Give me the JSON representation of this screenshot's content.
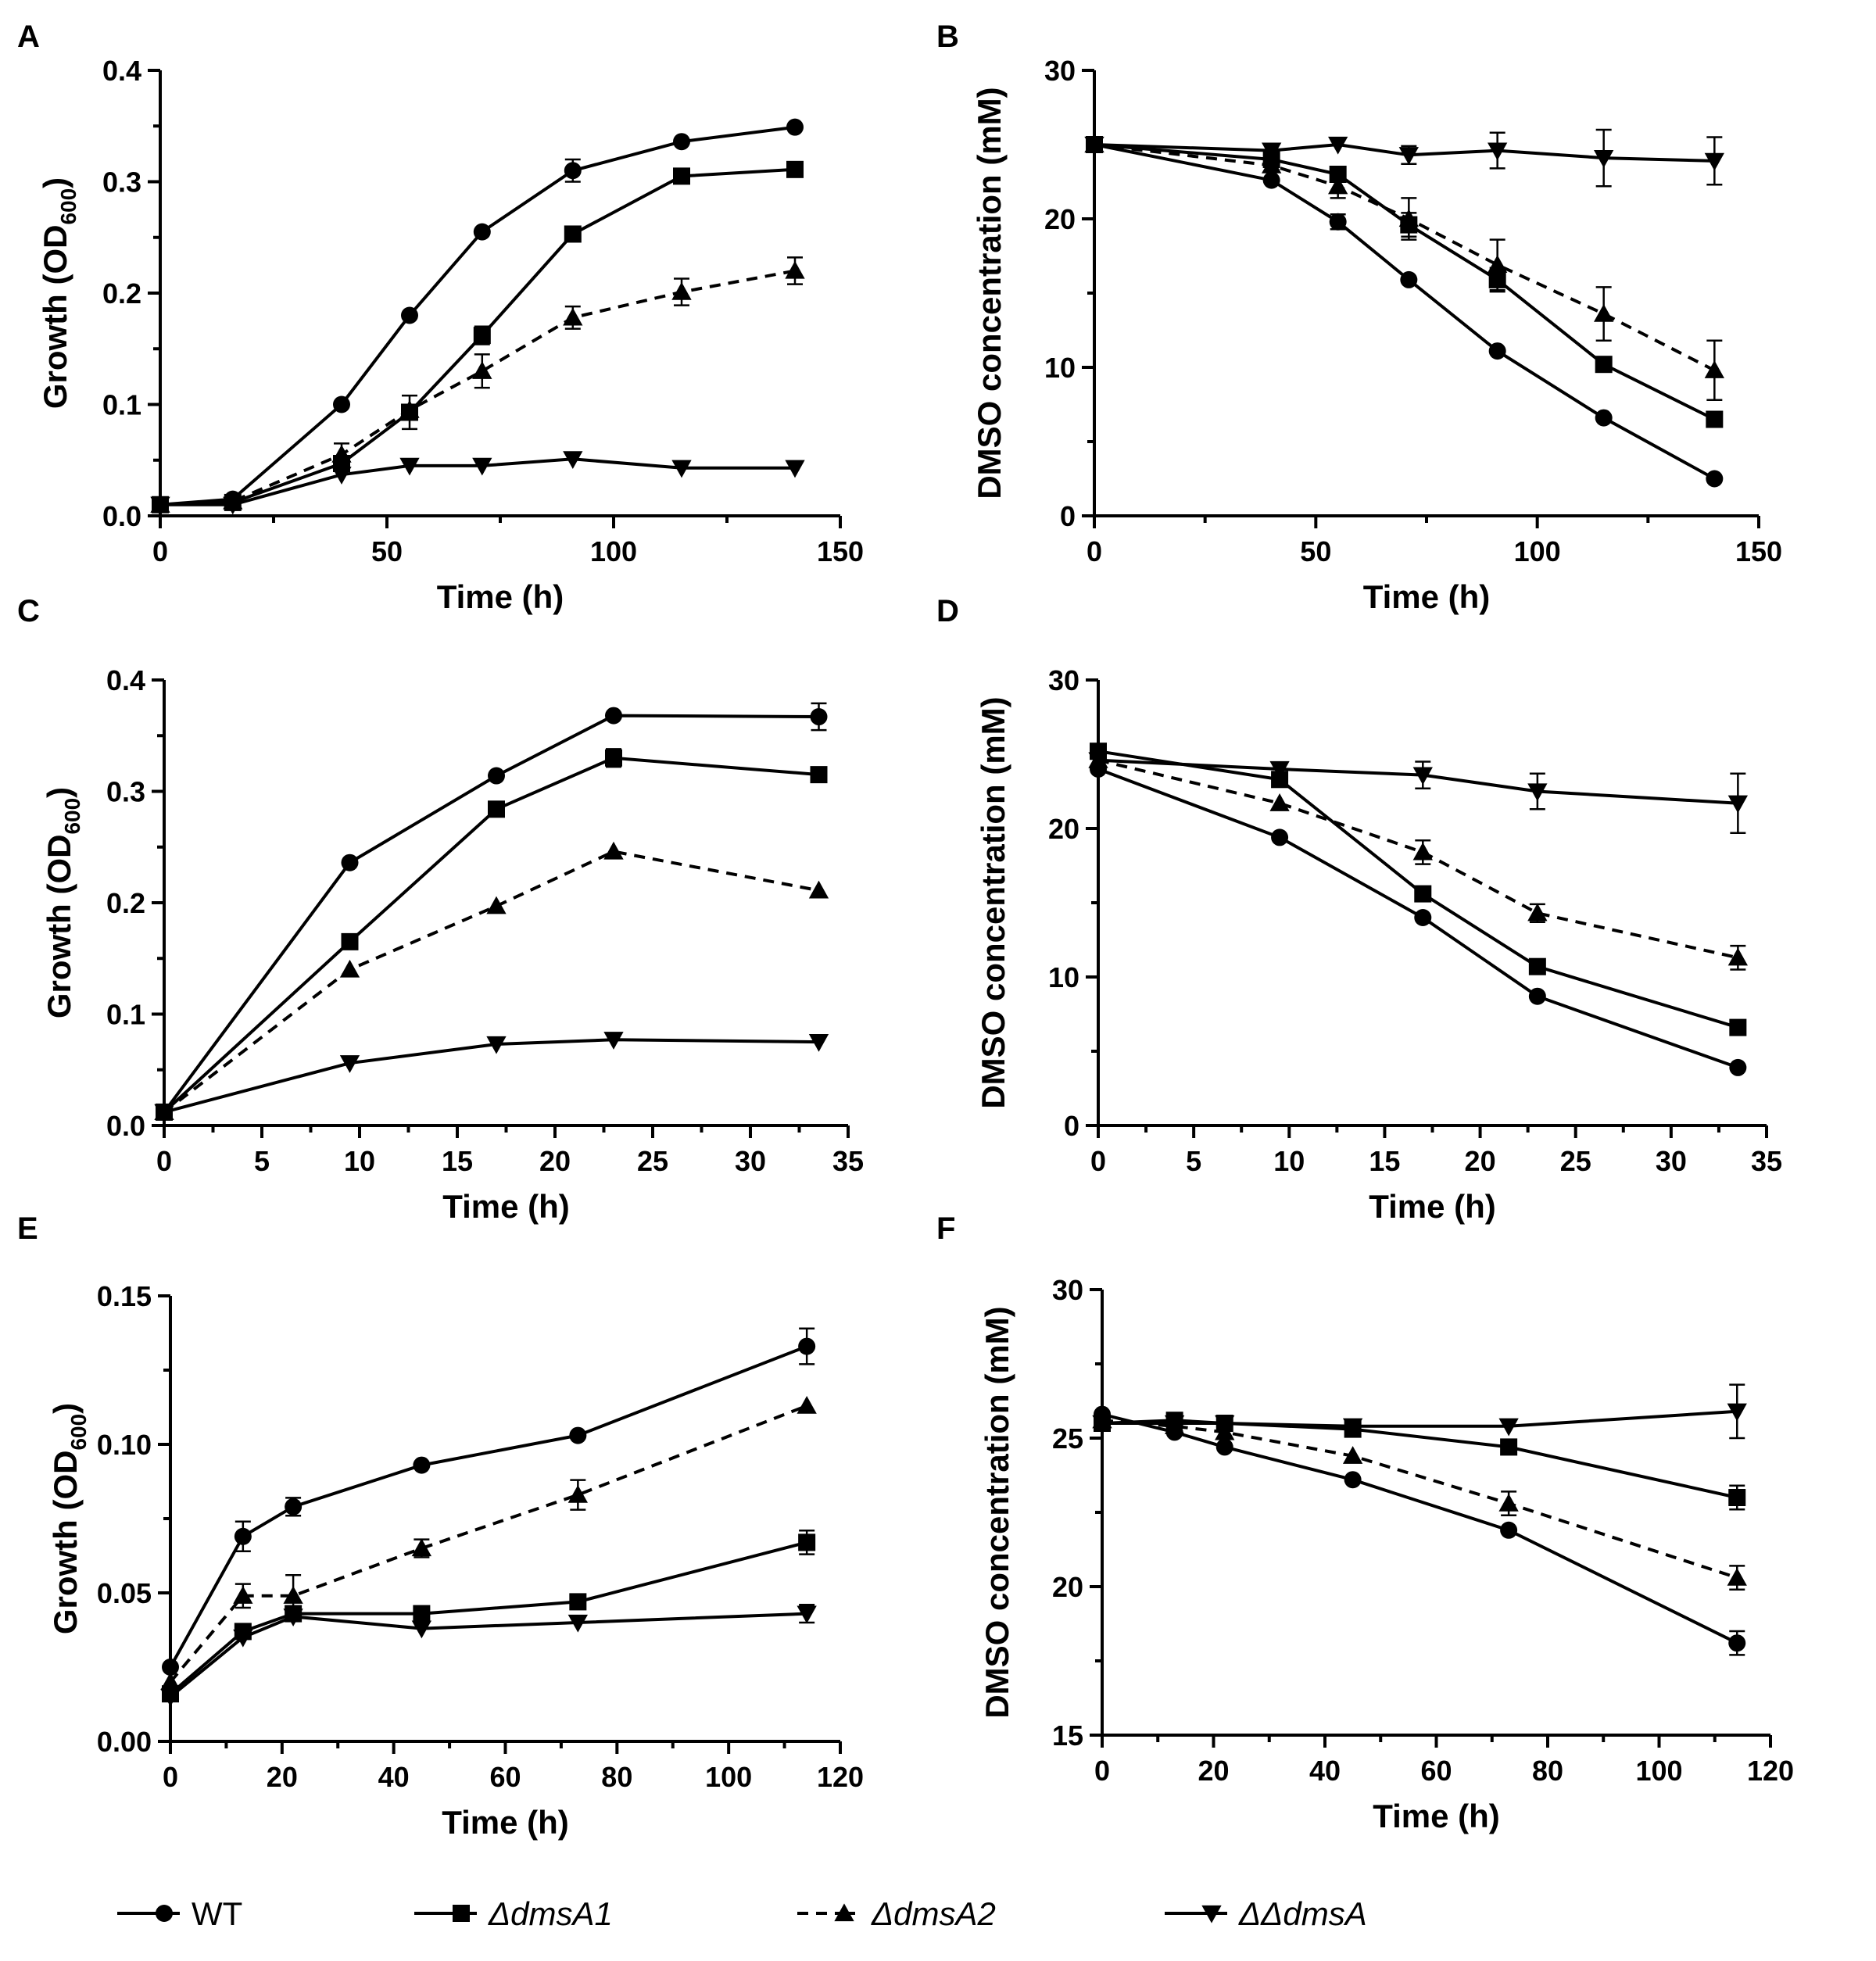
{
  "legend": [
    {
      "key": "wt",
      "label": "WT",
      "marker": "circle",
      "dashed": false,
      "italic": false
    },
    {
      "key": "a1",
      "label": "ΔdmsA1",
      "marker": "square",
      "dashed": false,
      "italic": true
    },
    {
      "key": "a2",
      "label": "ΔdmsA2",
      "marker": "triangle-up",
      "dashed": true,
      "italic": true
    },
    {
      "key": "dd",
      "label": "ΔΔdmsA",
      "marker": "triangle-down",
      "dashed": false,
      "italic": true
    }
  ],
  "chart_data": [
    {
      "panel": "A",
      "type": "line",
      "xlabel": "Time (h)",
      "ylabel_main": "Growth (OD",
      "ylabel_sub": "600",
      "ylabel_end": ")",
      "xlim": [
        0,
        150
      ],
      "ylim": [
        0,
        0.4
      ],
      "xticks": [
        0,
        50,
        100,
        150
      ],
      "xtick_labels": [
        "0",
        "50",
        "100",
        "150"
      ],
      "yticks": [
        0,
        0.1,
        0.2,
        0.3,
        0.4
      ],
      "ytick_labels": [
        "0.0",
        "0.1",
        "0.2",
        "0.3",
        "0.4"
      ],
      "series": [
        {
          "key": "wt",
          "x": [
            0,
            16,
            40,
            55,
            71,
            91,
            115,
            140
          ],
          "y": [
            0.01,
            0.015,
            0.1,
            0.18,
            0.255,
            0.31,
            0.336,
            0.349
          ],
          "err": [
            0,
            0,
            0,
            0,
            0,
            0.01,
            0,
            0
          ]
        },
        {
          "key": "a1",
          "x": [
            0,
            16,
            40,
            55,
            71,
            91,
            115,
            140
          ],
          "y": [
            0.01,
            0.012,
            0.047,
            0.093,
            0.162,
            0.253,
            0.305,
            0.311
          ],
          "err": [
            0,
            0,
            0,
            0.015,
            0.008,
            0,
            0,
            0
          ]
        },
        {
          "key": "a2",
          "x": [
            0,
            16,
            40,
            55,
            71,
            91,
            115,
            140
          ],
          "y": [
            0.01,
            0.013,
            0.055,
            0.095,
            0.13,
            0.178,
            0.201,
            0.22
          ],
          "err": [
            0,
            0,
            0.01,
            0,
            0.015,
            0.01,
            0.012,
            0.012
          ]
        },
        {
          "key": "dd",
          "x": [
            0,
            16,
            40,
            55,
            71,
            91,
            115,
            140
          ],
          "y": [
            0.01,
            0.01,
            0.037,
            0.045,
            0.045,
            0.051,
            0.043,
            0.043
          ],
          "err": [
            0,
            0,
            0,
            0,
            0,
            0,
            0,
            0
          ]
        }
      ]
    },
    {
      "panel": "B",
      "type": "line",
      "xlabel": "Time (h)",
      "ylabel_main": "DMSO concentration (mM)",
      "ylabel_sub": "",
      "ylabel_end": "",
      "xlim": [
        0,
        150
      ],
      "ylim": [
        0,
        30
      ],
      "xticks": [
        0,
        50,
        100,
        150
      ],
      "xtick_labels": [
        "0",
        "50",
        "100",
        "150"
      ],
      "yticks": [
        0,
        10,
        20,
        30
      ],
      "ytick_labels": [
        "0",
        "10",
        "20",
        "30"
      ],
      "series": [
        {
          "key": "wt",
          "x": [
            0,
            40,
            55,
            71,
            91,
            115,
            140
          ],
          "y": [
            25,
            22.6,
            19.8,
            15.9,
            11.1,
            6.6,
            2.5
          ],
          "err": [
            0,
            0,
            0.5,
            0,
            0,
            0,
            0
          ]
        },
        {
          "key": "a1",
          "x": [
            0,
            40,
            55,
            71,
            91,
            115,
            140
          ],
          "y": [
            25,
            24,
            23,
            19.6,
            15.9,
            10.2,
            6.5
          ],
          "err": [
            0,
            0,
            0,
            0.8,
            0.8,
            0,
            0
          ]
        },
        {
          "key": "a2",
          "x": [
            0,
            40,
            55,
            71,
            91,
            115,
            140
          ],
          "y": [
            25,
            23.6,
            22.2,
            20,
            16.9,
            13.6,
            9.8
          ],
          "err": [
            0,
            0,
            0.8,
            1.4,
            1.7,
            1.8,
            2
          ]
        },
        {
          "key": "dd",
          "x": [
            0,
            40,
            55,
            71,
            91,
            115,
            140
          ],
          "y": [
            25,
            24.6,
            25,
            24.3,
            24.6,
            24.1,
            23.9
          ],
          "err": [
            0,
            0,
            0,
            0.6,
            1.2,
            1.9,
            1.6
          ]
        }
      ]
    },
    {
      "panel": "C",
      "type": "line",
      "xlabel": "Time (h)",
      "ylabel_main": "Growth (OD",
      "ylabel_sub": "600",
      "ylabel_end": ")",
      "xlim": [
        0,
        35
      ],
      "ylim": [
        0,
        0.4
      ],
      "xticks": [
        0,
        5,
        10,
        15,
        20,
        25,
        30,
        35
      ],
      "xtick_labels": [
        "0",
        "5",
        "10",
        "15",
        "20",
        "25",
        "30",
        "35"
      ],
      "yticks": [
        0,
        0.1,
        0.2,
        0.3,
        0.4
      ],
      "ytick_labels": [
        "0.0",
        "0.1",
        "0.2",
        "0.3",
        "0.4"
      ],
      "series": [
        {
          "key": "wt",
          "x": [
            0,
            9.5,
            17,
            23,
            33.5
          ],
          "y": [
            0.012,
            0.236,
            0.314,
            0.368,
            0.367
          ],
          "err": [
            0,
            0,
            0,
            0,
            0.012
          ]
        },
        {
          "key": "a1",
          "x": [
            0,
            9.5,
            17,
            23,
            33.5
          ],
          "y": [
            0.012,
            0.165,
            0.284,
            0.33,
            0.315
          ],
          "err": [
            0,
            0,
            0,
            0.008,
            0
          ]
        },
        {
          "key": "a2",
          "x": [
            0,
            9.5,
            17,
            23,
            33.5
          ],
          "y": [
            0.012,
            0.14,
            0.197,
            0.246,
            0.211
          ],
          "err": [
            0,
            0,
            0,
            0,
            0
          ]
        },
        {
          "key": "dd",
          "x": [
            0,
            9.5,
            17,
            23,
            33.5
          ],
          "y": [
            0.012,
            0.056,
            0.073,
            0.077,
            0.075
          ],
          "err": [
            0,
            0,
            0,
            0,
            0
          ]
        }
      ]
    },
    {
      "panel": "D",
      "type": "line",
      "xlabel": "Time (h)",
      "ylabel_main": "DMSO concentration (mM)",
      "ylabel_sub": "",
      "ylabel_end": "",
      "xlim": [
        0,
        35
      ],
      "ylim": [
        0,
        30
      ],
      "xticks": [
        0,
        5,
        10,
        15,
        20,
        25,
        30,
        35
      ],
      "xtick_labels": [
        "0",
        "5",
        "10",
        "15",
        "20",
        "25",
        "30",
        "35"
      ],
      "yticks": [
        0,
        10,
        20,
        30
      ],
      "ytick_labels": [
        "0",
        "10",
        "20",
        "30"
      ],
      "series": [
        {
          "key": "wt",
          "x": [
            0,
            9.5,
            17,
            23,
            33.5
          ],
          "y": [
            24,
            19.4,
            14,
            8.7,
            3.9
          ],
          "err": [
            0,
            0,
            0,
            0,
            0
          ]
        },
        {
          "key": "a1",
          "x": [
            0,
            9.5,
            17,
            23,
            33.5
          ],
          "y": [
            25.2,
            23.3,
            15.6,
            10.7,
            6.6
          ],
          "err": [
            0,
            0,
            0,
            0,
            0
          ]
        },
        {
          "key": "a2",
          "x": [
            0,
            9.5,
            17,
            23,
            33.5
          ],
          "y": [
            24.6,
            21.7,
            18.4,
            14.3,
            11.3
          ],
          "err": [
            0,
            0,
            0.8,
            0.6,
            0.8
          ]
        },
        {
          "key": "dd",
          "x": [
            0,
            9.5,
            17,
            23,
            33.5
          ],
          "y": [
            24.6,
            24,
            23.6,
            22.5,
            21.7
          ],
          "err": [
            0,
            0,
            0.9,
            1.2,
            2
          ]
        }
      ]
    },
    {
      "panel": "E",
      "type": "line",
      "xlabel": "Time (h)",
      "ylabel_main": "Growth (OD",
      "ylabel_sub": "600",
      "ylabel_end": ")",
      "xlim": [
        0,
        120
      ],
      "ylim": [
        0,
        0.15
      ],
      "xticks": [
        0,
        20,
        40,
        60,
        80,
        100,
        120
      ],
      "xtick_labels": [
        "0",
        "20",
        "40",
        "60",
        "80",
        "100",
        "120"
      ],
      "yticks": [
        0,
        0.05,
        0.1,
        0.15
      ],
      "ytick_labels": [
        "0.00",
        "0.05",
        "0.10",
        "0.15"
      ],
      "series": [
        {
          "key": "wt",
          "x": [
            0,
            13,
            22,
            45,
            73,
            114
          ],
          "y": [
            0.025,
            0.069,
            0.079,
            0.093,
            0.103,
            0.133
          ],
          "err": [
            0,
            0.005,
            0.003,
            0,
            0,
            0.006
          ]
        },
        {
          "key": "a1",
          "x": [
            0,
            13,
            22,
            45,
            73,
            114
          ],
          "y": [
            0.016,
            0.037,
            0.043,
            0.043,
            0.047,
            0.067
          ],
          "err": [
            0,
            0,
            0,
            0,
            0,
            0.004
          ]
        },
        {
          "key": "a2",
          "x": [
            0,
            13,
            22,
            45,
            73,
            114
          ],
          "y": [
            0.02,
            0.049,
            0.049,
            0.065,
            0.083,
            0.113
          ],
          "err": [
            0,
            0.004,
            0.007,
            0.003,
            0.005,
            0
          ]
        },
        {
          "key": "dd",
          "x": [
            0,
            13,
            22,
            45,
            73,
            114
          ],
          "y": [
            0.015,
            0.035,
            0.042,
            0.038,
            0.04,
            0.043
          ],
          "err": [
            0,
            0,
            0,
            0,
            0,
            0.003
          ]
        }
      ]
    },
    {
      "panel": "F",
      "type": "line",
      "xlabel": "Time (h)",
      "ylabel_main": "DMSO concentration (mM)",
      "ylabel_sub": "",
      "ylabel_end": "",
      "xlim": [
        0,
        120
      ],
      "ylim": [
        15,
        30
      ],
      "xticks": [
        0,
        20,
        40,
        60,
        80,
        100,
        120
      ],
      "xtick_labels": [
        "0",
        "20",
        "40",
        "60",
        "80",
        "100",
        "120"
      ],
      "yticks": [
        15,
        20,
        25,
        30
      ],
      "ytick_labels": [
        "15",
        "20",
        "25",
        "30"
      ],
      "series": [
        {
          "key": "wt",
          "x": [
            0,
            13,
            22,
            45,
            73,
            114
          ],
          "y": [
            25.8,
            25.2,
            24.7,
            23.6,
            21.9,
            18.1
          ],
          "err": [
            0,
            0,
            0,
            0,
            0,
            0.4
          ]
        },
        {
          "key": "a1",
          "x": [
            0,
            13,
            22,
            45,
            73,
            114
          ],
          "y": [
            25.5,
            25.6,
            25.5,
            25.3,
            24.7,
            23
          ],
          "err": [
            0,
            0,
            0,
            0,
            0,
            0.4
          ]
        },
        {
          "key": "a2",
          "x": [
            0,
            13,
            22,
            45,
            73,
            114
          ],
          "y": [
            25.6,
            25.4,
            25.2,
            24.4,
            22.8,
            20.3
          ],
          "err": [
            0,
            0,
            0,
            0,
            0.4,
            0.4
          ]
        },
        {
          "key": "dd",
          "x": [
            0,
            13,
            22,
            45,
            73,
            114
          ],
          "y": [
            25.5,
            25.5,
            25.5,
            25.4,
            25.4,
            25.9
          ],
          "err": [
            0,
            0,
            0,
            0,
            0,
            0.9
          ]
        }
      ]
    }
  ]
}
